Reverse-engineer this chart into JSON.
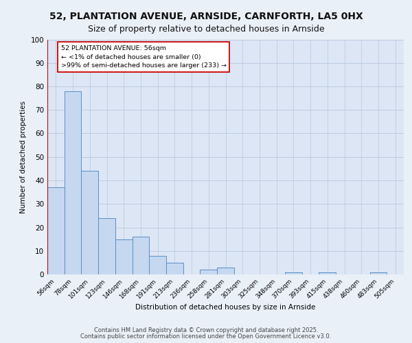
{
  "title1": "52, PLANTATION AVENUE, ARNSIDE, CARNFORTH, LA5 0HX",
  "title2": "Size of property relative to detached houses in Arnside",
  "xlabel": "Distribution of detached houses by size in Arnside",
  "ylabel": "Number of detached properties",
  "categories": [
    "56sqm",
    "78sqm",
    "101sqm",
    "123sqm",
    "146sqm",
    "168sqm",
    "191sqm",
    "213sqm",
    "236sqm",
    "258sqm",
    "281sqm",
    "303sqm",
    "325sqm",
    "348sqm",
    "370sqm",
    "393sqm",
    "415sqm",
    "438sqm",
    "460sqm",
    "483sqm",
    "505sqm"
  ],
  "values": [
    37,
    78,
    44,
    24,
    15,
    16,
    8,
    5,
    0,
    2,
    3,
    0,
    0,
    0,
    1,
    0,
    1,
    0,
    0,
    1,
    0
  ],
  "bar_color": "#c5d8f0",
  "bar_edge_color": "#5b8ec4",
  "highlight_color": "#cc0000",
  "annotation_line1": "52 PLANTATION AVENUE: 56sqm",
  "annotation_line2": "← <1% of detached houses are smaller (0)",
  "annotation_line3": ">99% of semi-detached houses are larger (233) →",
  "annotation_box_color": "#ffffff",
  "annotation_box_edge": "#cc0000",
  "ylim": [
    0,
    100
  ],
  "yticks": [
    0,
    10,
    20,
    30,
    40,
    50,
    60,
    70,
    80,
    90,
    100
  ],
  "footer1": "Contains HM Land Registry data © Crown copyright and database right 2025.",
  "footer2": "Contains public sector information licensed under the Open Government Licence v3.0.",
  "bg_color": "#dce6f5",
  "fig_bg_color": "#eaf0f8",
  "grid_color": "#b8c8de",
  "title1_fontsize": 10,
  "title2_fontsize": 9,
  "footer_fontsize": 6.0
}
